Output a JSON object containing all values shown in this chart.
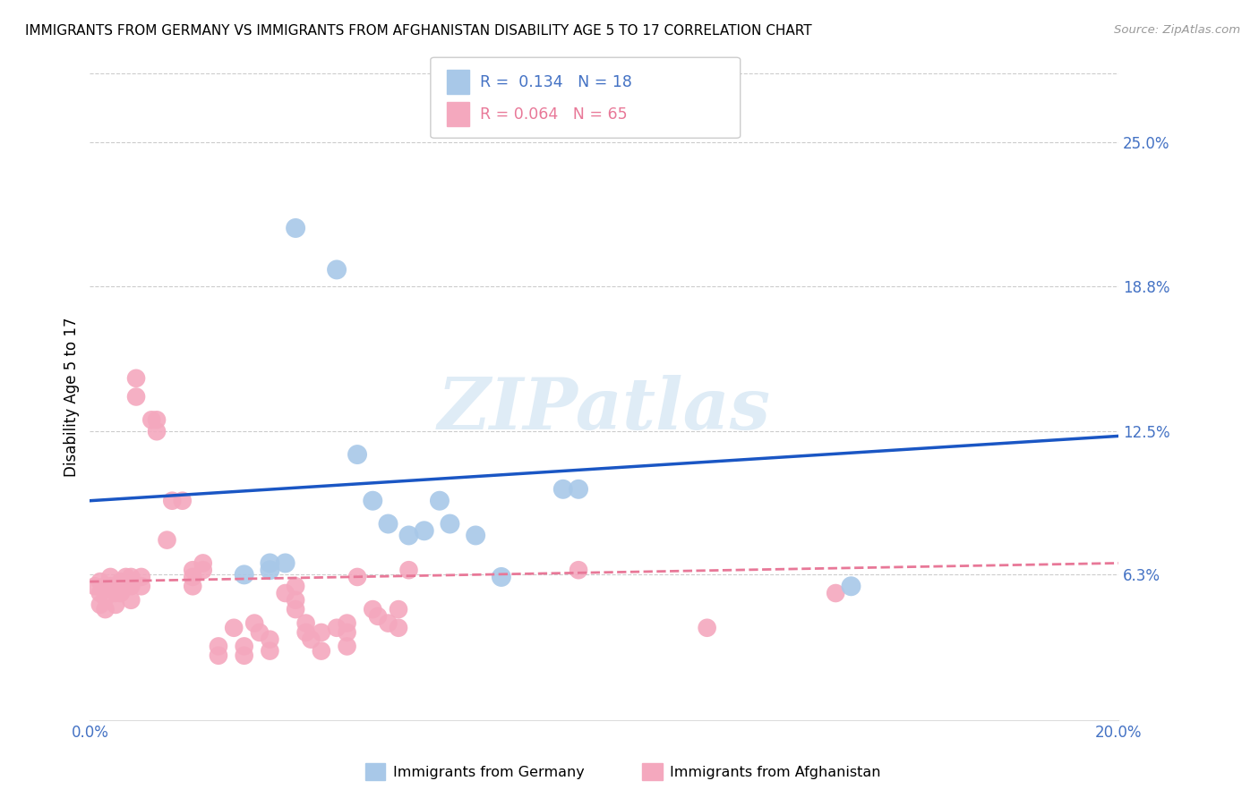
{
  "title": "IMMIGRANTS FROM GERMANY VS IMMIGRANTS FROM AFGHANISTAN DISABILITY AGE 5 TO 17 CORRELATION CHART",
  "source": "Source: ZipAtlas.com",
  "ylabel": "Disability Age 5 to 17",
  "xlim": [
    0.0,
    0.2
  ],
  "ylim": [
    0.0,
    0.28
  ],
  "ytick_labels": [
    "6.3%",
    "12.5%",
    "18.8%",
    "25.0%"
  ],
  "ytick_positions": [
    0.063,
    0.125,
    0.188,
    0.25
  ],
  "grid_color": "#cccccc",
  "background_color": "#ffffff",
  "watermark_text": "ZIPatlas",
  "germany_color": "#a8c8e8",
  "afghanistan_color": "#f4a8be",
  "germany_line_color": "#1a56c4",
  "afghanistan_line_color": "#e87898",
  "legend_label_germany": "Immigrants from Germany",
  "legend_label_afghanistan": "Immigrants from Afghanistan",
  "germany_x": [
    0.03,
    0.035,
    0.035,
    0.038,
    0.04,
    0.048,
    0.052,
    0.055,
    0.058,
    0.062,
    0.065,
    0.068,
    0.07,
    0.075,
    0.08,
    0.092,
    0.095,
    0.148
  ],
  "germany_y": [
    0.063,
    0.065,
    0.068,
    0.068,
    0.213,
    0.195,
    0.115,
    0.095,
    0.085,
    0.08,
    0.082,
    0.095,
    0.085,
    0.08,
    0.062,
    0.1,
    0.1,
    0.058
  ],
  "afghanistan_x": [
    0.001,
    0.002,
    0.002,
    0.002,
    0.003,
    0.003,
    0.003,
    0.004,
    0.004,
    0.005,
    0.005,
    0.006,
    0.006,
    0.007,
    0.007,
    0.008,
    0.008,
    0.008,
    0.009,
    0.009,
    0.01,
    0.01,
    0.012,
    0.013,
    0.013,
    0.015,
    0.016,
    0.018,
    0.02,
    0.02,
    0.02,
    0.022,
    0.022,
    0.025,
    0.025,
    0.028,
    0.03,
    0.03,
    0.032,
    0.033,
    0.035,
    0.035,
    0.038,
    0.04,
    0.04,
    0.04,
    0.042,
    0.042,
    0.043,
    0.045,
    0.045,
    0.048,
    0.05,
    0.05,
    0.05,
    0.052,
    0.055,
    0.056,
    0.058,
    0.06,
    0.06,
    0.062,
    0.095,
    0.12,
    0.145
  ],
  "afghanistan_y": [
    0.058,
    0.06,
    0.055,
    0.05,
    0.058,
    0.053,
    0.048,
    0.062,
    0.058,
    0.055,
    0.05,
    0.06,
    0.055,
    0.062,
    0.058,
    0.062,
    0.058,
    0.052,
    0.148,
    0.14,
    0.062,
    0.058,
    0.13,
    0.13,
    0.125,
    0.078,
    0.095,
    0.095,
    0.065,
    0.062,
    0.058,
    0.068,
    0.065,
    0.032,
    0.028,
    0.04,
    0.032,
    0.028,
    0.042,
    0.038,
    0.035,
    0.03,
    0.055,
    0.058,
    0.052,
    0.048,
    0.042,
    0.038,
    0.035,
    0.038,
    0.03,
    0.04,
    0.042,
    0.038,
    0.032,
    0.062,
    0.048,
    0.045,
    0.042,
    0.048,
    0.04,
    0.065,
    0.065,
    0.04,
    0.055
  ],
  "germany_trend_x0": 0.0,
  "germany_trend_y0": 0.095,
  "germany_trend_x1": 0.2,
  "germany_trend_y1": 0.123,
  "afghanistan_trend_x0": 0.0,
  "afghanistan_trend_y0": 0.06,
  "afghanistan_trend_x1": 0.2,
  "afghanistan_trend_y1": 0.068
}
